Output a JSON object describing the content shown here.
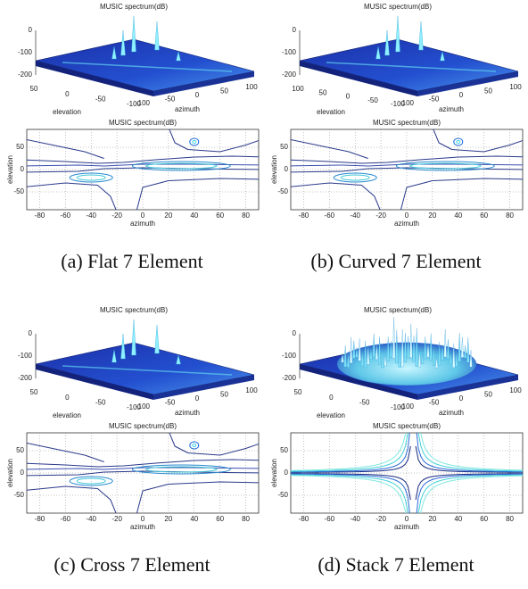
{
  "panels": [
    {
      "caption": "(a) Flat 7 Element",
      "style": "peaks",
      "surface": {
        "title": "MUSIC spectrum(dB)",
        "zticks": [
          0,
          -100,
          -200
        ],
        "elevation_ticks": [
          50,
          0,
          -50,
          -100
        ],
        "azimuth_ticks": [
          -100,
          -50,
          0,
          50,
          100
        ],
        "xlabel": "elevation",
        "ylabel": "azimuth"
      },
      "contour": {
        "title": "MUSIC spectrum(dB)",
        "xlabel": "azimuth",
        "ylabel": "elevation",
        "xlim": [
          -90,
          90
        ],
        "ylim": [
          -90,
          90
        ],
        "xticks": [
          -80,
          -60,
          -40,
          -20,
          0,
          20,
          40,
          60,
          80
        ],
        "yticks": [
          50,
          0,
          -50
        ]
      }
    },
    {
      "caption": "(b) Curved 7 Element",
      "style": "peaks",
      "surface": {
        "title": "MUSIC spectrum(dB)",
        "zticks": [
          0,
          -100,
          -200
        ],
        "elevation_ticks": [
          100,
          50,
          0,
          -50,
          -100
        ],
        "azimuth_ticks": [
          -100,
          -50,
          0,
          50,
          100
        ],
        "xlabel": "elevation",
        "ylabel": "azimuth"
      },
      "contour": {
        "title": "MUSIC spectrum(dB)",
        "xlabel": "azimuth",
        "ylabel": "elevation",
        "xlim": [
          -90,
          90
        ],
        "ylim": [
          -90,
          90
        ],
        "xticks": [
          -80,
          -60,
          -40,
          -20,
          0,
          20,
          40,
          60,
          80
        ],
        "yticks": [
          50,
          0,
          -50
        ]
      }
    },
    {
      "caption": "(c) Cross 7 Element",
      "style": "peaks",
      "surface": {
        "title": "MUSIC spectrum(dB)",
        "zticks": [
          0,
          -100,
          -200
        ],
        "elevation_ticks": [
          50,
          0,
          -50,
          -100
        ],
        "azimuth_ticks": [
          -100,
          -50,
          0,
          50,
          100
        ],
        "xlabel": "elevation",
        "ylabel": "azimuth"
      },
      "contour": {
        "title": "MUSIC spectrum(dB)",
        "xlabel": "azimuth",
        "ylabel": "elevation",
        "xlim": [
          -90,
          90
        ],
        "ylim": [
          -90,
          90
        ],
        "xticks": [
          -80,
          -60,
          -40,
          -20,
          0,
          20,
          40,
          60,
          80
        ],
        "yticks": [
          50,
          0,
          -50
        ]
      }
    },
    {
      "caption": "(d) Stack 7 Element",
      "style": "cross",
      "surface": {
        "title": "MUSIC spectrum(dB)",
        "zticks": [
          0,
          -100,
          -200
        ],
        "elevation_ticks": [
          50,
          0,
          -50,
          -100
        ],
        "azimuth_ticks": [
          -100,
          -50,
          0,
          50,
          100
        ],
        "xlabel": "elevation",
        "ylabel": "azimuth"
      },
      "contour": {
        "title": "MUSIC spectrum(dB)",
        "xlabel": "azimuth",
        "ylabel": "elevation",
        "xlim": [
          -90,
          90
        ],
        "ylim": [
          -90,
          90
        ],
        "xticks": [
          -80,
          -60,
          -40,
          -20,
          0,
          20,
          40,
          60,
          80
        ],
        "yticks": [
          50,
          0,
          -50
        ]
      }
    }
  ]
}
